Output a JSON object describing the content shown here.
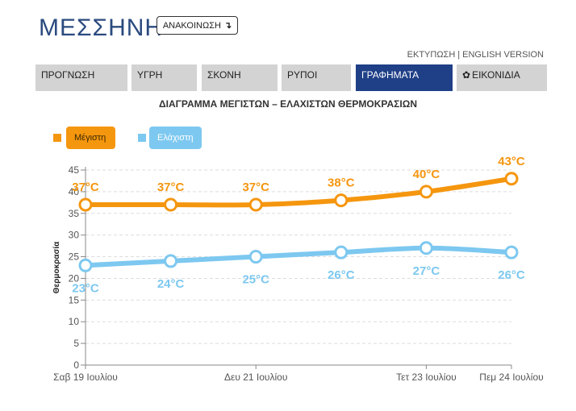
{
  "header": {
    "title": "ΜΕΣΣΗΝΗ",
    "announce_label": "ΑΝΑΚΟΙΝΩΣΗ",
    "announce_icon": "↴",
    "print_link": "ΕΚΤΥΠΩΣΗ",
    "link_separator": "|",
    "english_link": "ENGLISH VERSION"
  },
  "tabs": [
    {
      "label": "ΠΡΟΓΝΩΣΗ"
    },
    {
      "label": "ΥΓΡΗ"
    },
    {
      "label": "ΣΚΟΝΗ"
    },
    {
      "label": "ΡΥΠΟΙ"
    },
    {
      "label": "ΓΡΑΦΗΜΑΤΑ"
    },
    {
      "label": "ΕΙΚΟΝΙΔΙΑ",
      "icon": "gear-icon"
    }
  ],
  "chart_data": {
    "type": "line",
    "title": "ΔΙΑΓΡΑΜΜΑ ΜΕΓΙΣΤΩΝ – ΕΛΑΧΙΣΤΩΝ ΘΕΡΜΟΚΡΑΣΙΩΝ",
    "ylabel": "Θερμοκρασία",
    "xlabel": "",
    "ylim": [
      0,
      45
    ],
    "yticks": [
      0,
      5,
      10,
      15,
      20,
      25,
      30,
      35,
      40,
      45
    ],
    "grid": true,
    "legend_position": "top-left",
    "x_tick_labels": [
      "Σαβ 19 Ιουλίου",
      "Δευ 21 Ιουλίου",
      "Τετ 23 Ιουλίου",
      "Πεμ 24 Ιουλίου"
    ],
    "x_tick_index": [
      0,
      2,
      4,
      5
    ],
    "series": [
      {
        "name": "Μέγιστη",
        "color": "#f5960f",
        "values": [
          37,
          37,
          37,
          38,
          40,
          43
        ],
        "labels": [
          "37°C",
          "37°C",
          "37°C",
          "38°C",
          "40°C",
          "43°C"
        ]
      },
      {
        "name": "Ελάχιστη",
        "color": "#7dc8f0",
        "values": [
          23,
          24,
          25,
          26,
          27,
          26
        ],
        "labels": [
          "23°C",
          "24°C",
          "25°C",
          "26°C",
          "27°C",
          "26°C"
        ]
      }
    ]
  }
}
